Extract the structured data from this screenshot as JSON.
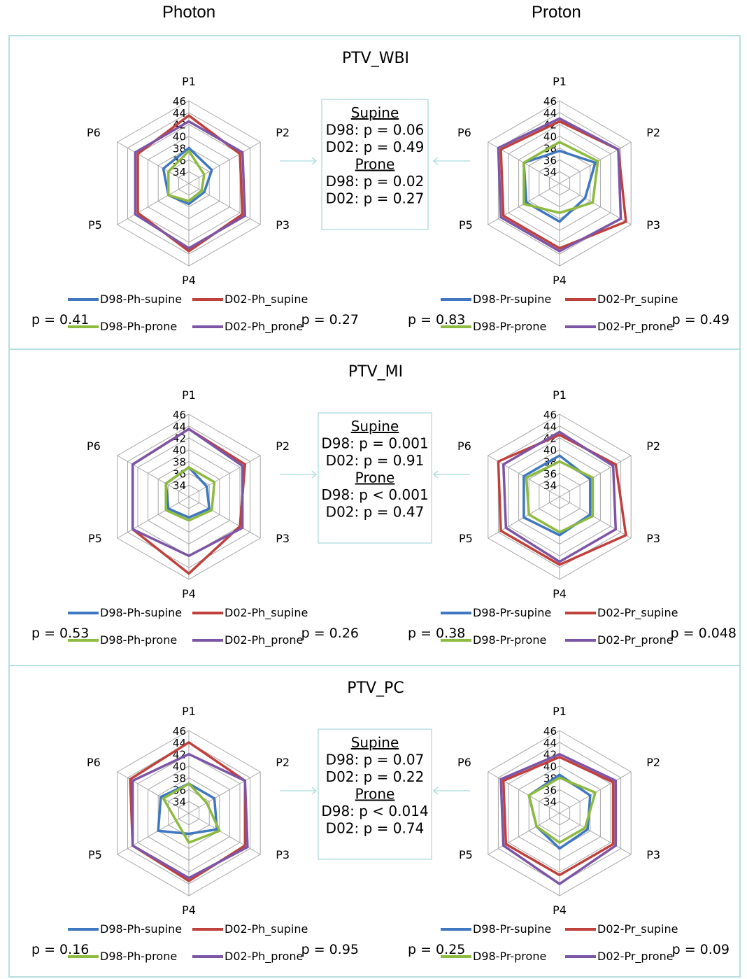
{
  "headers": {
    "left": "Photon",
    "right": "Proton"
  },
  "colors": {
    "d98_supine": "#3f77c0",
    "d02_supine": "#c0403c",
    "d98_prone": "#8dbb3f",
    "d02_prone": "#7d55a6",
    "frame": "#b7dfe0",
    "grid": "#a6a6a6",
    "arrow": "#a9dcdc"
  },
  "axis_labels": [
    "P1",
    "P2",
    "P3",
    "P4",
    "P5",
    "P6"
  ],
  "tick_labels": [
    "34",
    "36",
    "38",
    "40",
    "42",
    "44",
    "46"
  ],
  "legends": {
    "photon": [
      "D98-Ph-supine",
      "D02-Ph_supine",
      "D98-Ph-prone",
      "D02-Ph_prone"
    ],
    "proton": [
      "D98-Pr-supine",
      "D02-Pr_supine",
      "D98-Pr-prone",
      "D02-Pr_prone"
    ]
  },
  "panels": [
    {
      "title": "PTV_WBI",
      "stats": {
        "h1": "Supine",
        "l1": "D98: p = 0.06",
        "l2": "D02: p = 0.49",
        "h2": "Prone",
        "l3": "D98: p = 0.02",
        "l4": "D02: p = 0.27"
      },
      "photon_p": {
        "left": "p = 0.41",
        "right": "p = 0.27"
      },
      "proton_p": {
        "left": "p = 0.83",
        "right": "p = 0.49"
      }
    },
    {
      "title": "PTV_MI",
      "stats": {
        "h1": "Supine",
        "l1": "D98: p = 0.001",
        "l2": "D02: p = 0.91",
        "h2": "Prone",
        "l3": "D98: p < 0.001",
        "l4": "D02: p = 0.47"
      },
      "photon_p": {
        "left": "p = 0.53",
        "right": "p = 0.26"
      },
      "proton_p": {
        "left": "p = 0.38",
        "right": "p = 0.048"
      }
    },
    {
      "title": "PTV_PC",
      "stats": {
        "h1": "Supine",
        "l1": "D98: p = 0.07",
        "l2": "D02: p = 0.22",
        "h2": "Prone",
        "l3": "D98: p < 0.014",
        "l4": "D02: p = 0.74"
      },
      "photon_p": {
        "left": "p = 0.16",
        "right": "p = 0.95"
      },
      "proton_p": {
        "left": "p = 0.25",
        "right": "p = 0.09"
      }
    }
  ],
  "chart_data": [
    {
      "type": "radar",
      "panel": "PTV_WBI",
      "modality": "Photon",
      "categories": [
        "P1",
        "P2",
        "P3",
        "P4",
        "P5",
        "P6"
      ],
      "rlim": [
        32,
        46
      ],
      "series": [
        {
          "name": "D98-Ph-supine",
          "values": [
            38.0,
            36.5,
            35.0,
            35.5,
            36.0,
            37.0
          ]
        },
        {
          "name": "D02-Ph_supine",
          "values": [
            43.5,
            42.0,
            42.5,
            43.5,
            42.0,
            42.0
          ]
        },
        {
          "name": "D98-Ph-prone",
          "values": [
            37.5,
            35.0,
            34.5,
            35.0,
            36.0,
            36.0
          ]
        },
        {
          "name": "D02-Ph_prone",
          "values": [
            42.5,
            42.5,
            43.0,
            43.0,
            42.5,
            42.5
          ]
        }
      ]
    },
    {
      "type": "radar",
      "panel": "PTV_WBI",
      "modality": "Proton",
      "categories": [
        "P1",
        "P2",
        "P3",
        "P4",
        "P5",
        "P6"
      ],
      "rlim": [
        32,
        46
      ],
      "series": [
        {
          "name": "D98-Pr-supine",
          "values": [
            37.5,
            39.0,
            37.0,
            38.5,
            38.5,
            39.0
          ]
        },
        {
          "name": "D02-Pr_supine",
          "values": [
            42.5,
            43.5,
            45.0,
            43.0,
            43.0,
            43.5
          ]
        },
        {
          "name": "D98-Pr-prone",
          "values": [
            39.0,
            39.5,
            38.5,
            37.0,
            39.0,
            39.0
          ]
        },
        {
          "name": "D02-Pr_prone",
          "values": [
            43.0,
            43.5,
            44.0,
            43.5,
            43.5,
            44.0
          ]
        }
      ]
    },
    {
      "type": "radar",
      "panel": "PTV_MI",
      "modality": "Photon",
      "categories": [
        "P1",
        "P2",
        "P3",
        "P4",
        "P5",
        "P6"
      ],
      "rlim": [
        32,
        46
      ],
      "series": [
        {
          "name": "D98-Ph-supine",
          "values": [
            37.0,
            35.5,
            36.0,
            35.5,
            36.0,
            36.5
          ]
        },
        {
          "name": "D02-Ph_supine",
          "values": [
            43.5,
            43.0,
            42.0,
            45.0,
            43.0,
            43.0
          ]
        },
        {
          "name": "D98-Ph-prone",
          "values": [
            37.0,
            37.0,
            36.5,
            36.0,
            36.5,
            36.5
          ]
        },
        {
          "name": "D02-Ph_prone",
          "values": [
            43.5,
            42.5,
            42.5,
            42.0,
            43.0,
            43.0
          ]
        }
      ]
    },
    {
      "type": "radar",
      "panel": "PTV_MI",
      "modality": "Proton",
      "categories": [
        "P1",
        "P2",
        "P3",
        "P4",
        "P5",
        "P6"
      ],
      "rlim": [
        32,
        46
      ],
      "series": [
        {
          "name": "D98-Pr-supine",
          "values": [
            39.0,
            38.0,
            38.0,
            38.5,
            39.0,
            39.0
          ]
        },
        {
          "name": "D02-Pr_supine",
          "values": [
            42.5,
            43.0,
            45.0,
            43.5,
            43.5,
            44.0
          ]
        },
        {
          "name": "D98-Pr-prone",
          "values": [
            38.0,
            38.5,
            38.5,
            38.0,
            38.0,
            38.5
          ]
        },
        {
          "name": "D02-Pr_prone",
          "values": [
            43.0,
            42.5,
            43.0,
            43.0,
            42.5,
            43.0
          ]
        }
      ]
    },
    {
      "type": "radar",
      "panel": "PTV_PC",
      "modality": "Photon",
      "categories": [
        "P1",
        "P2",
        "P3",
        "P4",
        "P5",
        "P6"
      ],
      "rlim": [
        32,
        46
      ],
      "series": [
        {
          "name": "D98-Ph-supine",
          "values": [
            37.0,
            37.0,
            37.5,
            35.5,
            38.0,
            37.5
          ]
        },
        {
          "name": "D02-Ph_supine",
          "values": [
            44.0,
            43.0,
            43.0,
            43.5,
            43.0,
            43.5
          ]
        },
        {
          "name": "D98-Ph-prone",
          "values": [
            37.0,
            35.5,
            38.0,
            37.0,
            34.5,
            37.0
          ]
        },
        {
          "name": "D02-Ph_prone",
          "values": [
            42.0,
            43.0,
            43.5,
            43.0,
            43.0,
            43.0
          ]
        }
      ]
    },
    {
      "type": "radar",
      "panel": "PTV_PC",
      "modality": "Proton",
      "categories": [
        "P1",
        "P2",
        "P3",
        "P4",
        "P5",
        "P6"
      ],
      "rlim": [
        32,
        46
      ],
      "series": [
        {
          "name": "D98-Pr-supine",
          "values": [
            38.5,
            38.0,
            37.5,
            38.0,
            36.5,
            38.0
          ]
        },
        {
          "name": "D02-Pr_supine",
          "values": [
            41.5,
            42.5,
            42.5,
            42.5,
            42.5,
            43.0
          ]
        },
        {
          "name": "D98-Pr-prone",
          "values": [
            38.0,
            39.0,
            37.0,
            37.0,
            36.5,
            38.0
          ]
        },
        {
          "name": "D02-Pr_prone",
          "values": [
            42.0,
            43.0,
            43.0,
            44.0,
            43.0,
            43.5
          ]
        }
      ]
    }
  ]
}
